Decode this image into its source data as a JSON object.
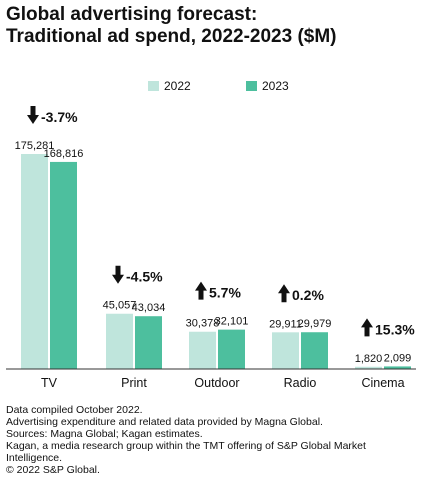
{
  "title": [
    "Global advertising forecast:",
    "Traditional ad spend, 2022-2023 ($M)"
  ],
  "colors": {
    "2022": "#bfe5dc",
    "2023": "#4dbf9e",
    "axis": "#333333",
    "arrow": "#111111"
  },
  "chart_data": {
    "type": "bar",
    "categories": [
      "TV",
      "Print",
      "Outdoor",
      "Radio",
      "Cinema"
    ],
    "series": [
      {
        "name": "2022",
        "values": [
          175281,
          45057,
          30378,
          29911,
          1820
        ]
      },
      {
        "name": "2023",
        "values": [
          168816,
          43034,
          32101,
          29979,
          2099
        ]
      }
    ],
    "value_labels": [
      [
        "175,281",
        "45,057",
        "30,378",
        "29,911",
        "1,820"
      ],
      [
        "168,816",
        "43,034",
        "32,101",
        "29,979",
        "2,099"
      ]
    ],
    "changes": [
      {
        "label": "-3.7%",
        "direction": "down"
      },
      {
        "label": "-4.5%",
        "direction": "down"
      },
      {
        "label": "5.7%",
        "direction": "up"
      },
      {
        "label": "0.2%",
        "direction": "up"
      },
      {
        "label": "15.3%",
        "direction": "up"
      }
    ],
    "ylim": [
      0,
      175281
    ],
    "legend_position": "top-right",
    "grid": false
  },
  "footer": [
    "Data compiled October 2022.",
    "Advertising expenditure and related data provided by Magna Global.",
    "Sources: Magna Global; Kagan estimates.",
    "Kagan, a media research group within the TMT offering of S&P Global Market",
    "Intelligence.",
    "© 2022 S&P Global."
  ]
}
